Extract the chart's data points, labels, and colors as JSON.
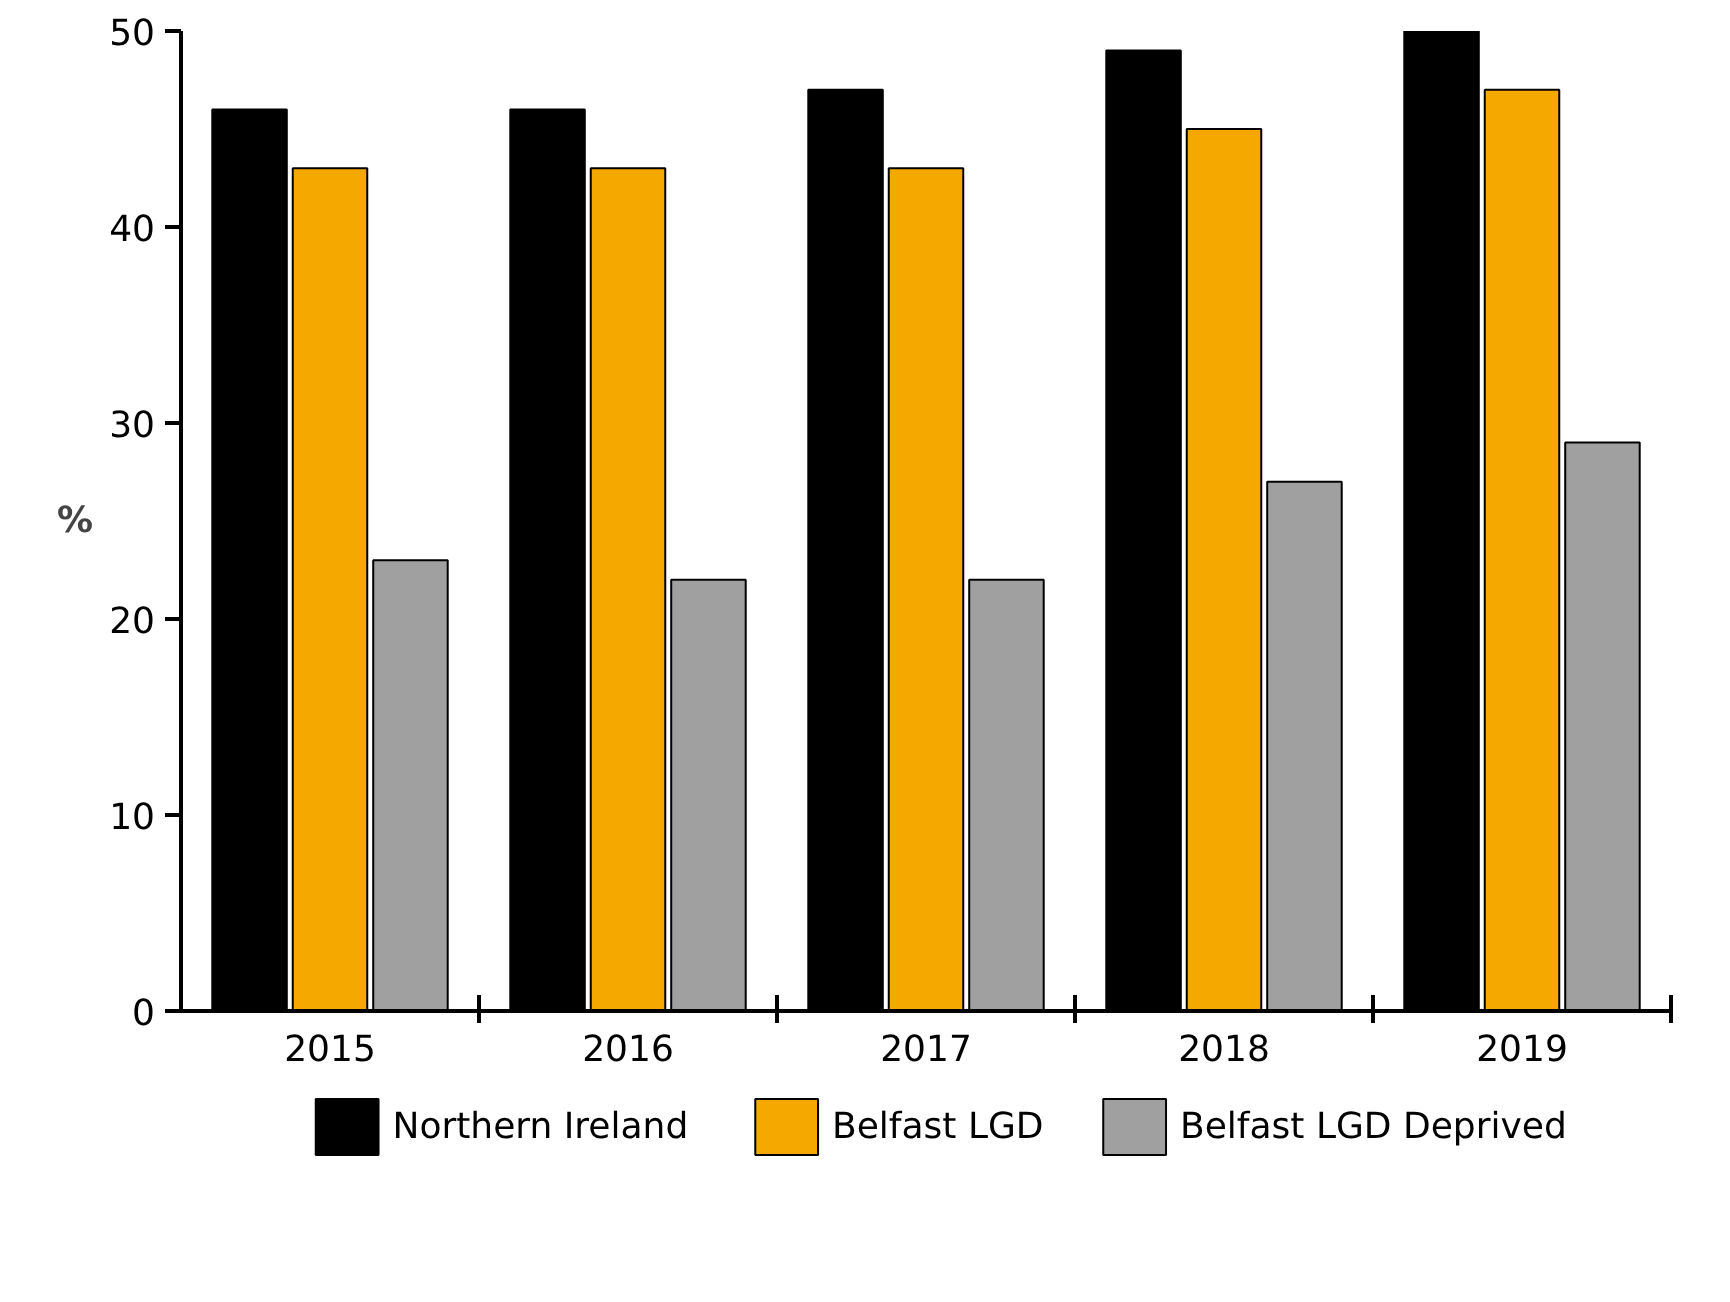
{
  "chart_data": {
    "type": "bar",
    "ylabel": "%",
    "categories": [
      "2015",
      "2016",
      "2017",
      "2018",
      "2019"
    ],
    "series": [
      {
        "name": "Northern Ireland",
        "color": "#000000",
        "values": [
          46,
          46,
          47,
          49,
          50
        ]
      },
      {
        "name": "Belfast LGD",
        "color": "#f5a800",
        "values": [
          43,
          43,
          43,
          45,
          47
        ]
      },
      {
        "name": "Belfast LGD Deprived",
        "color": "#a0a0a0",
        "values": [
          23,
          22,
          22,
          27,
          29
        ]
      }
    ],
    "ylim": [
      0,
      50
    ],
    "yticks": [
      0,
      10,
      20,
      30,
      40,
      50
    ],
    "grid": false,
    "legend": "bottom"
  }
}
